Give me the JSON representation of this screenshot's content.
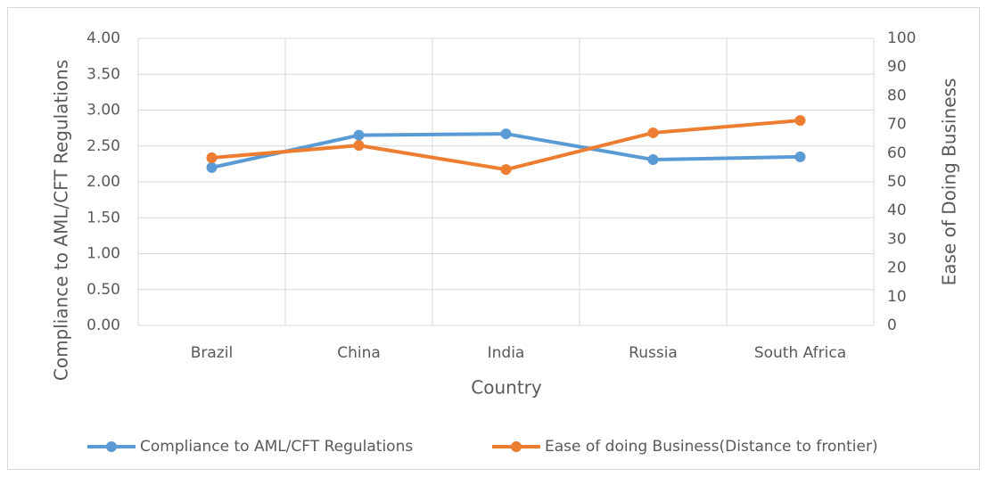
{
  "chart_data": {
    "type": "line",
    "x_label": "Country",
    "y_label": "Compliance to AML/CFT Regulations",
    "y2_label": "Ease of Doing Business",
    "categories": [
      "Brazil",
      "China",
      "India",
      "Russia",
      "South Africa"
    ],
    "series": [
      {
        "name": "Compliance to AML/CFT Regulations",
        "color": "#5b9bd5",
        "values": [
          2.2,
          2.65,
          2.67,
          2.31,
          2.35
        ]
      },
      {
        "name": "Ease of doing Business(Distance to frontier)",
        "color": "#ed7d31",
        "axis": "y2",
        "values": [
          58.4,
          62.7,
          54.3,
          67.1,
          71.4
        ]
      }
    ],
    "ylim": [
      0,
      4
    ],
    "yticks": [
      {
        "value": 0,
        "label": "0.00"
      },
      {
        "value": 0.5,
        "label": "0.50"
      },
      {
        "value": 1,
        "label": "1.00"
      },
      {
        "value": 1.5,
        "label": "1.50"
      },
      {
        "value": 2,
        "label": "2.00"
      },
      {
        "value": 2.5,
        "label": "2.50"
      },
      {
        "value": 3,
        "label": "3.00"
      },
      {
        "value": 3.5,
        "label": "3.50"
      },
      {
        "value": 4,
        "label": "4.00"
      }
    ],
    "y2lim": [
      0,
      100
    ],
    "y2ticks": [
      0,
      10,
      20,
      30,
      40,
      50,
      60,
      70,
      80,
      90,
      100
    ],
    "grid": true,
    "legend": "bottom"
  }
}
